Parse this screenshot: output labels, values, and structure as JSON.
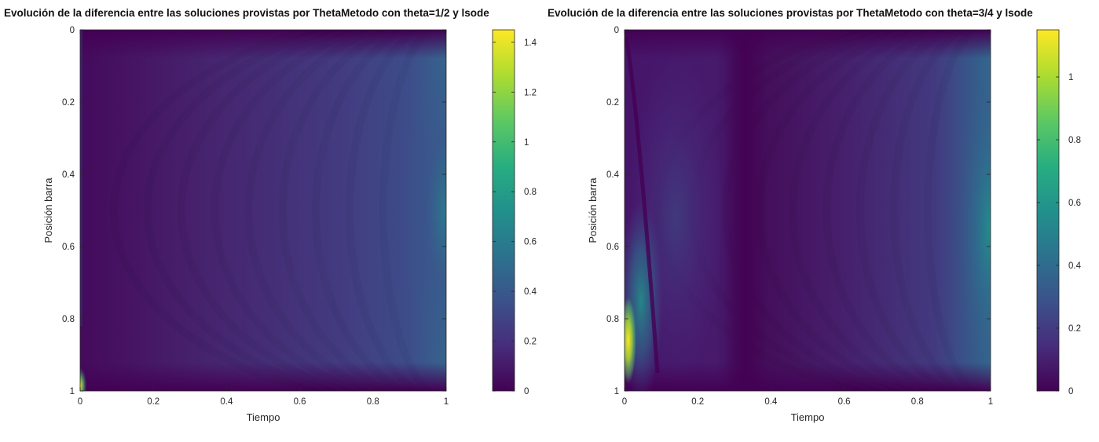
{
  "chart_data": [
    {
      "type": "heatmap",
      "title": "Evolución de la diferencia entre las soluciones provistas por  ThetaMetodo con theta=1/2 y lsode",
      "xlabel": "Tiempo",
      "ylabel": "Posición barra",
      "xlim": [
        0,
        1
      ],
      "ylim": [
        0,
        1
      ],
      "y_reversed": true,
      "x_ticks": [
        "0",
        "0.2",
        "0.4",
        "0.6",
        "0.8",
        "1"
      ],
      "y_ticks": [
        "0",
        "0.2",
        "0.4",
        "0.6",
        "0.8",
        "1"
      ],
      "colorbar": {
        "min": 0,
        "max": 1.45,
        "ticks": [
          "0",
          "0.2",
          "0.4",
          "0.6",
          "0.8",
          "1",
          "1.2",
          "1.4"
        ]
      },
      "colormap": "viridis",
      "features": [
        {
          "x": 1.0,
          "y": 0.5,
          "value": 0.42
        },
        {
          "x": 0.0,
          "y": 0.98,
          "value": 1.45
        }
      ]
    },
    {
      "type": "heatmap",
      "title": "Evolución de la diferencia entre las soluciones provistas por  ThetaMetodo con theta=3/4 y lsode",
      "xlabel": "Tiempo",
      "ylabel": "Posición barra",
      "xlim": [
        0,
        1
      ],
      "ylim": [
        0,
        1
      ],
      "y_reversed": true,
      "x_ticks": [
        "0",
        "0.2",
        "0.4",
        "0.6",
        "0.8",
        "1"
      ],
      "y_ticks": [
        "0",
        "0.2",
        "0.4",
        "0.6",
        "0.8",
        "1"
      ],
      "colorbar": {
        "min": 0,
        "max": 1.15,
        "ticks": [
          "0",
          "0.2",
          "0.4",
          "0.6",
          "0.8",
          "1"
        ]
      },
      "colormap": "viridis",
      "features": [
        {
          "x": 0.01,
          "y": 0.85,
          "value": 1.15
        },
        {
          "x": 0.05,
          "y": 0.72,
          "value": 0.6
        },
        {
          "x": 0.13,
          "y": 0.5,
          "value": 0.22
        },
        {
          "x": 1.0,
          "y": 0.55,
          "value": 0.65
        }
      ]
    }
  ],
  "colors": {
    "viridis_low": "#440154",
    "viridis_mid": "#21918c",
    "viridis_high": "#fde725"
  }
}
